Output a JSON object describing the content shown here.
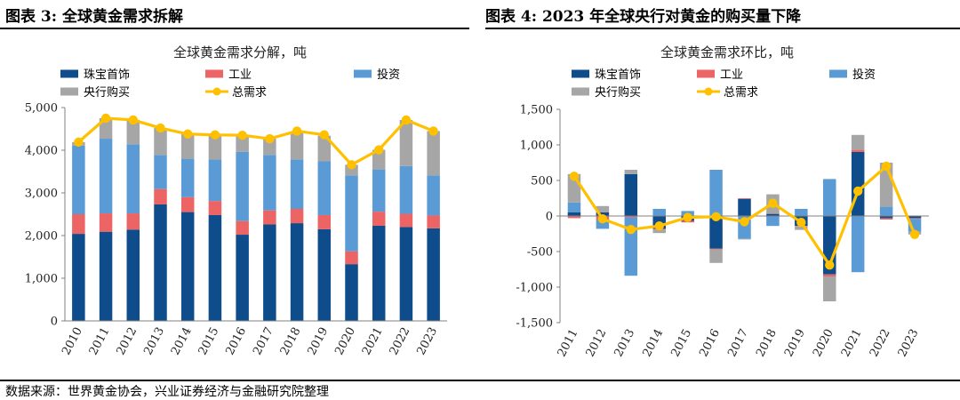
{
  "panels": [
    {
      "title": "图表 3:  全球黄金需求拆解"
    },
    {
      "title": "图表 4:  2023 年全球央行对黄金的购买量下降"
    }
  ],
  "source": "数据来源：世界黄金协会，兴业证券经济与金融研究院整理",
  "chart_data": [
    {
      "type": "bar",
      "stacked": true,
      "title": "全球黄金需求分解，吨",
      "categories": [
        "2010",
        "2011",
        "2012",
        "2013",
        "2014",
        "2015",
        "2016",
        "2017",
        "2018",
        "2019",
        "2020",
        "2021",
        "2022",
        "2023"
      ],
      "ylim": [
        0,
        5000
      ],
      "yticks": [
        0,
        1000,
        2000,
        3000,
        4000,
        5000
      ],
      "ytick_labels": [
        "0",
        "1,000",
        "2,000",
        "3,000",
        "4,000",
        "5,000"
      ],
      "grid": false,
      "legend": "top",
      "series": [
        {
          "name": "珠宝首饰",
          "kind": "bar",
          "color": "#0f4c8c",
          "values": [
            2040,
            2090,
            2140,
            2730,
            2550,
            2480,
            2020,
            2260,
            2290,
            2150,
            1330,
            2230,
            2200,
            2170
          ]
        },
        {
          "name": "工业",
          "kind": "bar",
          "color": "#ec6464",
          "values": [
            460,
            430,
            380,
            360,
            350,
            330,
            320,
            330,
            335,
            330,
            300,
            330,
            310,
            300
          ]
        },
        {
          "name": "投资",
          "kind": "bar",
          "color": "#5b9bd5",
          "values": [
            1610,
            1750,
            1620,
            800,
            900,
            970,
            1620,
            1300,
            1160,
            1260,
            1780,
            990,
            1120,
            940
          ]
        },
        {
          "name": "央行购买",
          "kind": "bar",
          "color": "#a6a6a6",
          "values": [
            80,
            480,
            570,
            630,
            580,
            580,
            390,
            380,
            650,
            600,
            250,
            460,
            1080,
            1040
          ]
        },
        {
          "name": "总需求",
          "kind": "line",
          "color": "#ffc000",
          "values": [
            4190,
            4750,
            4710,
            4520,
            4380,
            4360,
            4350,
            4270,
            4450,
            4360,
            3660,
            4010,
            4710,
            4450
          ]
        }
      ]
    },
    {
      "type": "bar",
      "stacked": true,
      "title": "全球黄金需求环比，吨",
      "categories": [
        "2011",
        "2012",
        "2013",
        "2014",
        "2015",
        "2016",
        "2017",
        "2018",
        "2019",
        "2020",
        "2021",
        "2022",
        "2023"
      ],
      "ylim": [
        -1500,
        1500
      ],
      "yticks": [
        -1500,
        -1000,
        -500,
        0,
        500,
        1000,
        1500
      ],
      "ytick_labels": [
        "-1,500",
        "-1,000",
        "-500",
        "0",
        "500",
        "1,000",
        "1,500"
      ],
      "grid": false,
      "legend": "top",
      "series": [
        {
          "name": "珠宝首饰",
          "kind": "bar",
          "color": "#0f4c8c",
          "values": [
            50,
            50,
            590,
            -180,
            -70,
            -460,
            240,
            30,
            -140,
            -820,
            900,
            -30,
            -30
          ]
        },
        {
          "name": "工业",
          "kind": "bar",
          "color": "#ec6464",
          "values": [
            -30,
            -50,
            -20,
            -10,
            -20,
            -10,
            10,
            5,
            -5,
            -30,
            30,
            -20,
            -10
          ]
        },
        {
          "name": "投资",
          "kind": "bar",
          "color": "#5b9bd5",
          "values": [
            140,
            -130,
            -820,
            100,
            70,
            650,
            -320,
            -140,
            100,
            520,
            -790,
            130,
            -180
          ]
        },
        {
          "name": "央行购买",
          "kind": "bar",
          "color": "#a6a6a6",
          "values": [
            400,
            90,
            60,
            -50,
            0,
            -190,
            -10,
            270,
            -50,
            -350,
            210,
            620,
            -40
          ]
        },
        {
          "name": "总需求",
          "kind": "line",
          "color": "#ffc000",
          "values": [
            560,
            -40,
            -190,
            -140,
            -20,
            -10,
            -80,
            180,
            -90,
            -690,
            350,
            700,
            -260
          ]
        }
      ]
    }
  ]
}
